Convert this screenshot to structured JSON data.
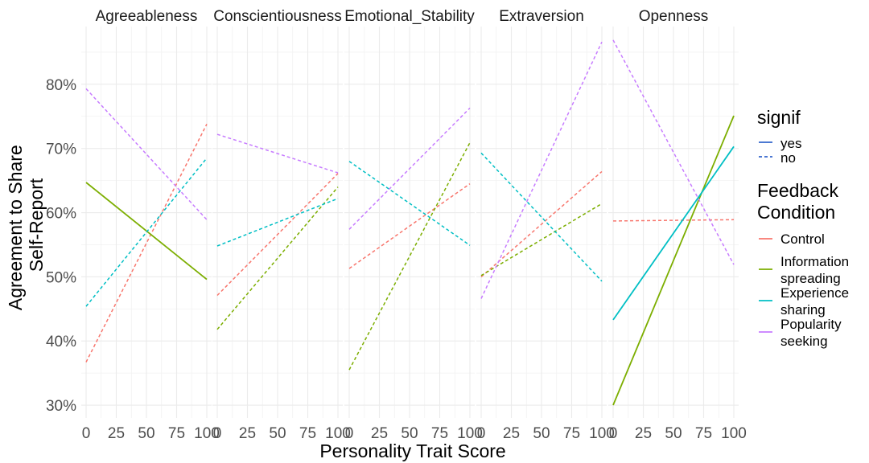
{
  "chart_data": {
    "type": "line",
    "facet_by": "trait",
    "facets": [
      "Agreeableness",
      "Conscientiousness",
      "Emotional_Stability",
      "Extraversion",
      "Openness"
    ],
    "xlabel": "Personality Trait Score",
    "ylabel_lines": [
      "Agreement to Share",
      "Self-Report"
    ],
    "xlim": [
      0,
      100
    ],
    "ylim": [
      0.28,
      0.89
    ],
    "x_ticks": [
      0,
      25,
      50,
      75,
      100
    ],
    "x_tick_labels": [
      "0",
      "25",
      "50",
      "75",
      "100"
    ],
    "y_ticks": [
      0.3,
      0.4,
      0.5,
      0.6,
      0.7,
      0.8
    ],
    "y_tick_labels": [
      "30%",
      "40%",
      "50%",
      "60%",
      "70%",
      "80%"
    ],
    "grid": true,
    "legend_position": "right",
    "linetype_legend": {
      "title": "signif",
      "items": [
        {
          "label": "yes",
          "dash": "solid"
        },
        {
          "label": "no",
          "dash": "dashed"
        }
      ]
    },
    "color_legend": {
      "title_lines": [
        "Feedback",
        "Condition"
      ],
      "items": [
        {
          "key": "control",
          "label_lines": [
            "Control"
          ],
          "color": "#F8766D"
        },
        {
          "key": "info",
          "label_lines": [
            "Information",
            "spreading"
          ],
          "color": "#7CAE00"
        },
        {
          "key": "exp",
          "label_lines": [
            "Experience",
            "sharing"
          ],
          "color": "#00BFC4"
        },
        {
          "key": "pop",
          "label_lines": [
            "Popularity",
            "seeking"
          ],
          "color": "#C77CFF"
        }
      ]
    },
    "series": [
      {
        "facet": "Agreeableness",
        "condition": "control",
        "signif": "no",
        "x": [
          0,
          100
        ],
        "y": [
          0.367,
          0.738
        ]
      },
      {
        "facet": "Agreeableness",
        "condition": "info",
        "signif": "yes",
        "x": [
          0,
          100
        ],
        "y": [
          0.647,
          0.496
        ]
      },
      {
        "facet": "Agreeableness",
        "condition": "exp",
        "signif": "no",
        "x": [
          0,
          100
        ],
        "y": [
          0.454,
          0.685
        ]
      },
      {
        "facet": "Agreeableness",
        "condition": "pop",
        "signif": "no",
        "x": [
          0,
          100
        ],
        "y": [
          0.793,
          0.589
        ]
      },
      {
        "facet": "Conscientiousness",
        "condition": "control",
        "signif": "no",
        "x": [
          0,
          100
        ],
        "y": [
          0.471,
          0.661
        ]
      },
      {
        "facet": "Conscientiousness",
        "condition": "info",
        "signif": "no",
        "x": [
          0,
          100
        ],
        "y": [
          0.418,
          0.64
        ]
      },
      {
        "facet": "Conscientiousness",
        "condition": "exp",
        "signif": "no",
        "x": [
          0,
          100
        ],
        "y": [
          0.548,
          0.622
        ]
      },
      {
        "facet": "Conscientiousness",
        "condition": "pop",
        "signif": "no",
        "x": [
          0,
          100
        ],
        "y": [
          0.722,
          0.662
        ]
      },
      {
        "facet": "Emotional_Stability",
        "condition": "control",
        "signif": "no",
        "x": [
          0,
          100
        ],
        "y": [
          0.513,
          0.645
        ]
      },
      {
        "facet": "Emotional_Stability",
        "condition": "info",
        "signif": "no",
        "x": [
          0,
          100
        ],
        "y": [
          0.355,
          0.709
        ]
      },
      {
        "facet": "Emotional_Stability",
        "condition": "exp",
        "signif": "no",
        "x": [
          0,
          100
        ],
        "y": [
          0.68,
          0.549
        ]
      },
      {
        "facet": "Emotional_Stability",
        "condition": "pop",
        "signif": "no",
        "x": [
          0,
          100
        ],
        "y": [
          0.574,
          0.763
        ]
      },
      {
        "facet": "Extraversion",
        "condition": "control",
        "signif": "no",
        "x": [
          0,
          100
        ],
        "y": [
          0.5,
          0.664
        ]
      },
      {
        "facet": "Extraversion",
        "condition": "info",
        "signif": "no",
        "x": [
          0,
          100
        ],
        "y": [
          0.502,
          0.614
        ]
      },
      {
        "facet": "Extraversion",
        "condition": "exp",
        "signif": "no",
        "x": [
          0,
          100
        ],
        "y": [
          0.693,
          0.493
        ]
      },
      {
        "facet": "Extraversion",
        "condition": "pop",
        "signif": "no",
        "x": [
          0,
          100
        ],
        "y": [
          0.466,
          0.866
        ]
      },
      {
        "facet": "Openness",
        "condition": "control",
        "signif": "no",
        "x": [
          0,
          100
        ],
        "y": [
          0.587,
          0.589
        ]
      },
      {
        "facet": "Openness",
        "condition": "info",
        "signif": "yes",
        "x": [
          0,
          100
        ],
        "y": [
          0.3,
          0.751
        ]
      },
      {
        "facet": "Openness",
        "condition": "exp",
        "signif": "yes",
        "x": [
          0,
          100
        ],
        "y": [
          0.433,
          0.703
        ]
      },
      {
        "facet": "Openness",
        "condition": "pop",
        "signif": "no",
        "x": [
          0,
          100
        ],
        "y": [
          0.869,
          0.519
        ]
      }
    ]
  }
}
